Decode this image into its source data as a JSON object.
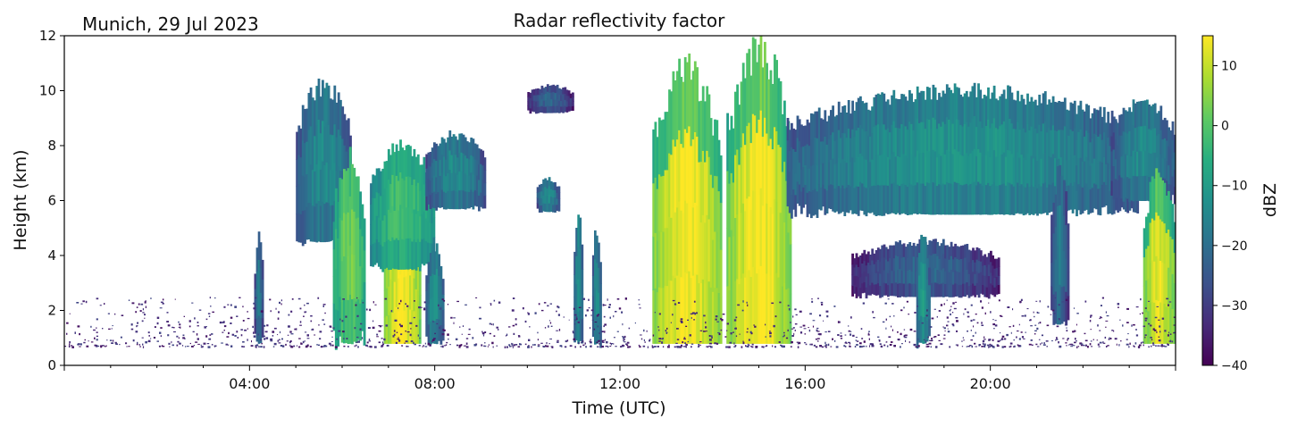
{
  "chart_data": {
    "type": "heatmap",
    "title": "Radar reflectivity factor",
    "subtitle": "Munich, 29 Jul 2023",
    "xlabel": "Time (UTC)",
    "ylabel": "Height (km)",
    "xlim": [
      0,
      24
    ],
    "ylim": [
      0,
      12
    ],
    "x_ticks": [
      {
        "value": 4,
        "label": "04:00"
      },
      {
        "value": 8,
        "label": "08:00"
      },
      {
        "value": 12,
        "label": "12:00"
      },
      {
        "value": 16,
        "label": "16:00"
      },
      {
        "value": 20,
        "label": "20:00"
      }
    ],
    "y_ticks": [
      {
        "value": 0,
        "label": "0"
      },
      {
        "value": 2,
        "label": "2"
      },
      {
        "value": 4,
        "label": "4"
      },
      {
        "value": 6,
        "label": "6"
      },
      {
        "value": 8,
        "label": "8"
      },
      {
        "value": 10,
        "label": "10"
      },
      {
        "value": 12,
        "label": "12"
      }
    ],
    "colorbar": {
      "label": "dBZ",
      "range": [
        -40,
        15
      ],
      "colormap": "viridis",
      "ticks": [
        {
          "value": 10,
          "label": "10"
        },
        {
          "value": 0,
          "label": "0"
        },
        {
          "value": -10,
          "label": "−10"
        },
        {
          "value": -20,
          "label": "−20"
        },
        {
          "value": -30,
          "label": "−30"
        },
        {
          "value": -40,
          "label": "−40"
        }
      ]
    },
    "features": [
      {
        "kind": "cloud",
        "t0": 4.1,
        "t1": 4.3,
        "base": 0.8,
        "top": 4.7,
        "dbz": -15
      },
      {
        "kind": "cloud",
        "t0": 5.0,
        "t1": 6.2,
        "base": 4.5,
        "top": 10.2,
        "dbz": -12
      },
      {
        "kind": "cloud",
        "t0": 5.8,
        "t1": 6.5,
        "base": 0.8,
        "top": 7.5,
        "dbz": 5
      },
      {
        "kind": "rain",
        "t0": 6.9,
        "t1": 7.7,
        "base": 0.8,
        "top": 6.0,
        "dbz": 14
      },
      {
        "kind": "cloud",
        "t0": 6.6,
        "t1": 8.0,
        "base": 3.5,
        "top": 8.0,
        "dbz": 0
      },
      {
        "kind": "cloud",
        "t0": 7.8,
        "t1": 9.1,
        "base": 5.7,
        "top": 8.4,
        "dbz": -12
      },
      {
        "kind": "cloud",
        "t0": 7.8,
        "t1": 8.2,
        "base": 0.8,
        "top": 4.3,
        "dbz": -10
      },
      {
        "kind": "cloud",
        "t0": 10.0,
        "t1": 11.0,
        "base": 9.2,
        "top": 10.2,
        "dbz": -20
      },
      {
        "kind": "cloud",
        "t0": 10.2,
        "t1": 10.7,
        "base": 5.6,
        "top": 6.8,
        "dbz": -12
      },
      {
        "kind": "cloud",
        "t0": 11.0,
        "t1": 11.2,
        "base": 0.8,
        "top": 5.5,
        "dbz": -10
      },
      {
        "kind": "cloud",
        "t0": 11.4,
        "t1": 11.6,
        "base": 0.8,
        "top": 5.0,
        "dbz": -10
      },
      {
        "kind": "rain",
        "t0": 12.7,
        "t1": 14.2,
        "base": 0.8,
        "top": 10.7,
        "dbz": 14
      },
      {
        "kind": "rain",
        "t0": 14.3,
        "t1": 15.7,
        "base": 0.8,
        "top": 11.5,
        "dbz": 14
      },
      {
        "kind": "cloud",
        "t0": 15.6,
        "t1": 23.2,
        "base": 5.5,
        "top": 10.0,
        "dbz": -10
      },
      {
        "kind": "cloud",
        "t0": 17.0,
        "t1": 20.2,
        "base": 2.5,
        "top": 4.5,
        "dbz": -20
      },
      {
        "kind": "cloud",
        "t0": 18.4,
        "t1": 18.7,
        "base": 0.8,
        "top": 4.7,
        "dbz": -8
      },
      {
        "kind": "cloud",
        "t0": 21.3,
        "t1": 21.7,
        "base": 1.5,
        "top": 7.0,
        "dbz": -15
      },
      {
        "kind": "cloud",
        "t0": 22.6,
        "t1": 24.0,
        "base": 6.0,
        "top": 9.6,
        "dbz": -12
      },
      {
        "kind": "rain",
        "t0": 23.3,
        "t1": 24.0,
        "base": 0.8,
        "top": 7.0,
        "dbz": 12
      },
      {
        "kind": "clutter",
        "t0": 0.0,
        "t1": 24.0,
        "base": 0.7,
        "top": 2.5,
        "dbz": -33
      }
    ]
  }
}
